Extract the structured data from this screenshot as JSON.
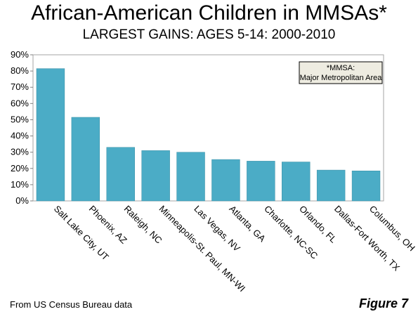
{
  "header": {
    "title": "African-American Children in MMSAs*",
    "subtitle": "LARGEST GAINS: AGES 5-14: 2000-2010"
  },
  "footer": {
    "source": "From US Census Bureau data",
    "figure_label": "Figure 7"
  },
  "note": {
    "line1": "*MMSA:",
    "line2": "Major Metropolitan Area"
  },
  "colors": {
    "bar": "#4bacc6",
    "plot_border": "#a6a6a6",
    "note_fill": "#eeece1"
  },
  "chart_data": {
    "type": "bar",
    "title": "African-American Children in MMSAs*",
    "subtitle": "LARGEST GAINS: AGES 5-14: 2000-2010",
    "categories": [
      "Salt Lake City, UT",
      "Phoenix, AZ",
      "Raleigh, NC",
      "Minneapolis-St. Paul, MN-WI",
      "Las Vegas, NV",
      "Atlanta, GA",
      "Charlotte, NC-SC",
      "Orlando, FL",
      "Dallas-Fort Worth, TX",
      "Columbus, OH"
    ],
    "values": [
      81.5,
      51.5,
      33,
      31,
      30,
      25.5,
      24.5,
      24,
      19,
      18.5
    ],
    "ylim": [
      0,
      90
    ],
    "yticks": [
      "0%",
      "10%",
      "20%",
      "30%",
      "40%",
      "50%",
      "60%",
      "70%",
      "80%",
      "90%"
    ],
    "grid": false,
    "legend": "none"
  }
}
